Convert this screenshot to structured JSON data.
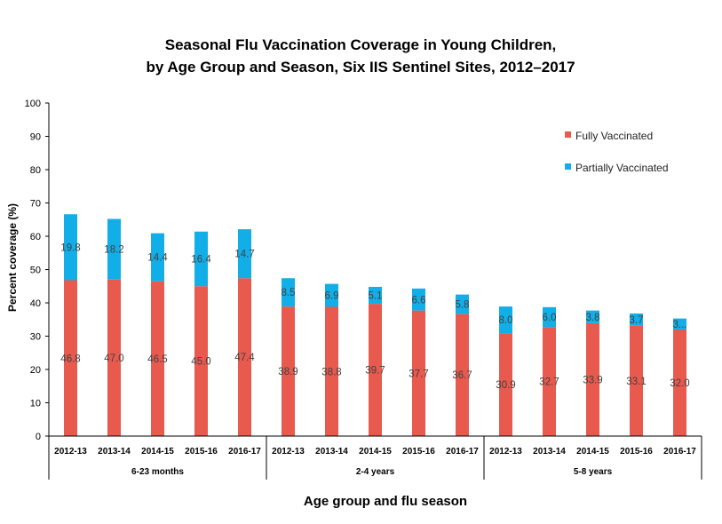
{
  "chart_data": {
    "type": "bar",
    "stacked": true,
    "title_lines": [
      "Seasonal Flu Vaccination Coverage in Young Children,",
      "by Age Group and Season, Six IIS Sentinel Sites, 2012–2017"
    ],
    "xlabel": "Age group and flu season",
    "ylabel": "Percent coverage (%)",
    "ylim": [
      0,
      100
    ],
    "yticks": [
      "0",
      "10",
      "20",
      "30",
      "40",
      "50",
      "60",
      "70",
      "80",
      "90",
      "100"
    ],
    "grid": false,
    "legend_position": "top-right",
    "groups": [
      "6-23 months",
      "2-4 years",
      "5-8 years"
    ],
    "categories": [
      "2012-13",
      "2013-14",
      "2014-15",
      "2015-16",
      "2016-17",
      "2012-13",
      "2013-14",
      "2014-15",
      "2015-16",
      "2016-17",
      "2012-13",
      "2013-14",
      "2014-15",
      "2015-16",
      "2016-17"
    ],
    "series": [
      {
        "name": "Fully Vaccinated",
        "color": "#E8594E",
        "values": [
          46.8,
          47.0,
          46.5,
          45.0,
          47.4,
          38.9,
          38.8,
          39.7,
          37.7,
          36.7,
          30.9,
          32.7,
          33.9,
          33.1,
          32.0
        ],
        "labels": [
          "46.8",
          "47.0",
          "46.5",
          "45.0",
          "47.4",
          "38.9",
          "38.8",
          "39.7",
          "37.7",
          "36.7",
          "30.9",
          "32.7",
          "33.9",
          "33.1",
          "32.0"
        ]
      },
      {
        "name": "Partially Vaccinated",
        "color": "#12AEE8",
        "values": [
          19.8,
          18.2,
          14.4,
          16.4,
          14.7,
          8.5,
          6.9,
          5.1,
          6.6,
          5.8,
          8.0,
          6.0,
          3.8,
          3.7,
          3.3
        ],
        "labels": [
          "19.8",
          "18.2",
          "14.4",
          "16.4",
          "14.7",
          "8.5",
          "6.9",
          "5.1",
          "6.6",
          "5.8",
          "8.0",
          "6.0",
          "3.8",
          "3.7",
          "3..."
        ]
      }
    ]
  }
}
